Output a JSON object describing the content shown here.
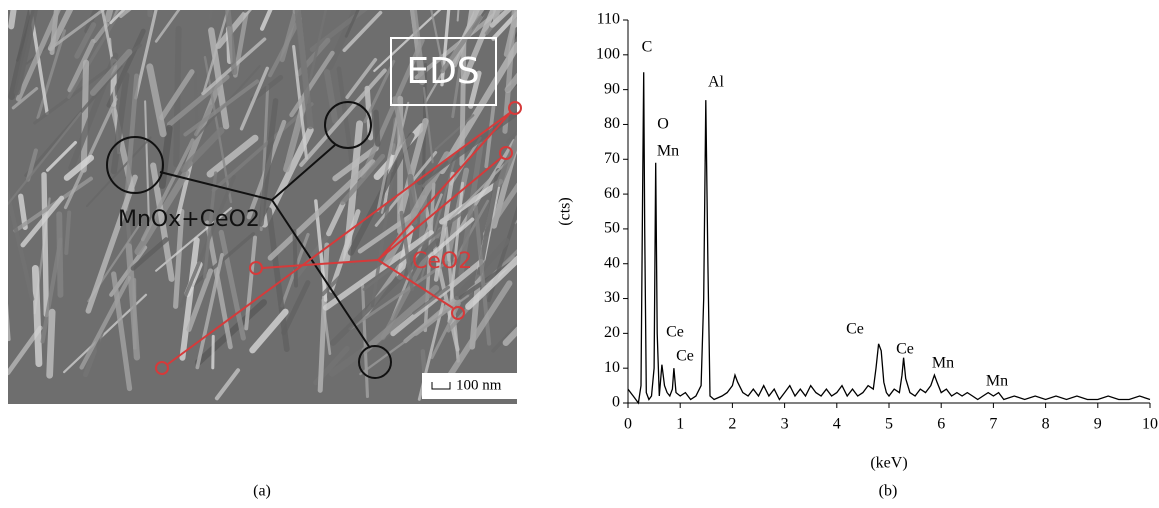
{
  "image": {
    "box_label": "EDS",
    "label_a": "MnOx+CeO2",
    "label_b": "CeO2",
    "scale_bar": "100 nm"
  },
  "panel_labels": [
    "(a)",
    "(b)"
  ],
  "chart_data": {
    "type": "line",
    "xlabel": "(keV)",
    "ylabel": "(cts)",
    "color": "#000000",
    "xlim": [
      0,
      10
    ],
    "xticks": [
      0,
      1,
      2,
      3,
      4,
      5,
      6,
      7,
      8,
      9,
      10
    ],
    "ylim": [
      0,
      110
    ],
    "yticks": [
      0,
      10,
      20,
      30,
      40,
      50,
      60,
      70,
      80,
      90,
      100,
      110
    ],
    "annotations": [
      "C",
      "O",
      "Mn",
      "Al",
      "Ce",
      "Ce",
      "Ce",
      "Ce",
      "Mn",
      "Mn"
    ],
    "x": [
      0,
      0.05,
      0.1,
      0.15,
      0.2,
      0.25,
      0.28,
      0.3,
      0.32,
      0.35,
      0.4,
      0.45,
      0.5,
      0.53,
      0.56,
      0.6,
      0.65,
      0.7,
      0.75,
      0.8,
      0.85,
      0.88,
      0.92,
      1.0,
      1.1,
      1.2,
      1.3,
      1.4,
      1.45,
      1.49,
      1.53,
      1.57,
      1.65,
      1.8,
      1.9,
      2.0,
      2.05,
      2.1,
      2.2,
      2.3,
      2.4,
      2.5,
      2.6,
      2.7,
      2.8,
      2.9,
      3.0,
      3.1,
      3.2,
      3.3,
      3.4,
      3.5,
      3.6,
      3.7,
      3.8,
      3.9,
      4.0,
      4.1,
      4.2,
      4.3,
      4.4,
      4.5,
      4.6,
      4.7,
      4.75,
      4.8,
      4.85,
      4.9,
      4.95,
      5.0,
      5.1,
      5.2,
      5.25,
      5.28,
      5.32,
      5.4,
      5.5,
      5.6,
      5.7,
      5.8,
      5.87,
      5.92,
      6.0,
      6.1,
      6.2,
      6.3,
      6.4,
      6.5,
      6.6,
      6.7,
      6.8,
      6.9,
      7.0,
      7.1,
      7.2,
      7.4,
      7.6,
      7.8,
      8.0,
      8.2,
      8.4,
      8.6,
      8.8,
      9.0,
      9.2,
      9.4,
      9.6,
      9.8,
      10.0
    ],
    "values": [
      4,
      3,
      2,
      1,
      0,
      5,
      60,
      95,
      50,
      3,
      1,
      2,
      10,
      69,
      20,
      2,
      11,
      5,
      3,
      2,
      4,
      10,
      3,
      2,
      3,
      1,
      2,
      5,
      30,
      87,
      40,
      2,
      1,
      2,
      3,
      5,
      8,
      6,
      3,
      2,
      4,
      2,
      5,
      2,
      4,
      1,
      3,
      5,
      2,
      4,
      2,
      5,
      3,
      2,
      4,
      2,
      3,
      5,
      2,
      4,
      2,
      3,
      5,
      4,
      10,
      17,
      15,
      6,
      3,
      2,
      4,
      3,
      8,
      13,
      7,
      3,
      2,
      4,
      3,
      5,
      8,
      6,
      3,
      4,
      2,
      3,
      2,
      3,
      2,
      1,
      2,
      3,
      2,
      3,
      1,
      2,
      1,
      2,
      1,
      2,
      1,
      2,
      1,
      1,
      2,
      1,
      1,
      2,
      1
    ]
  }
}
